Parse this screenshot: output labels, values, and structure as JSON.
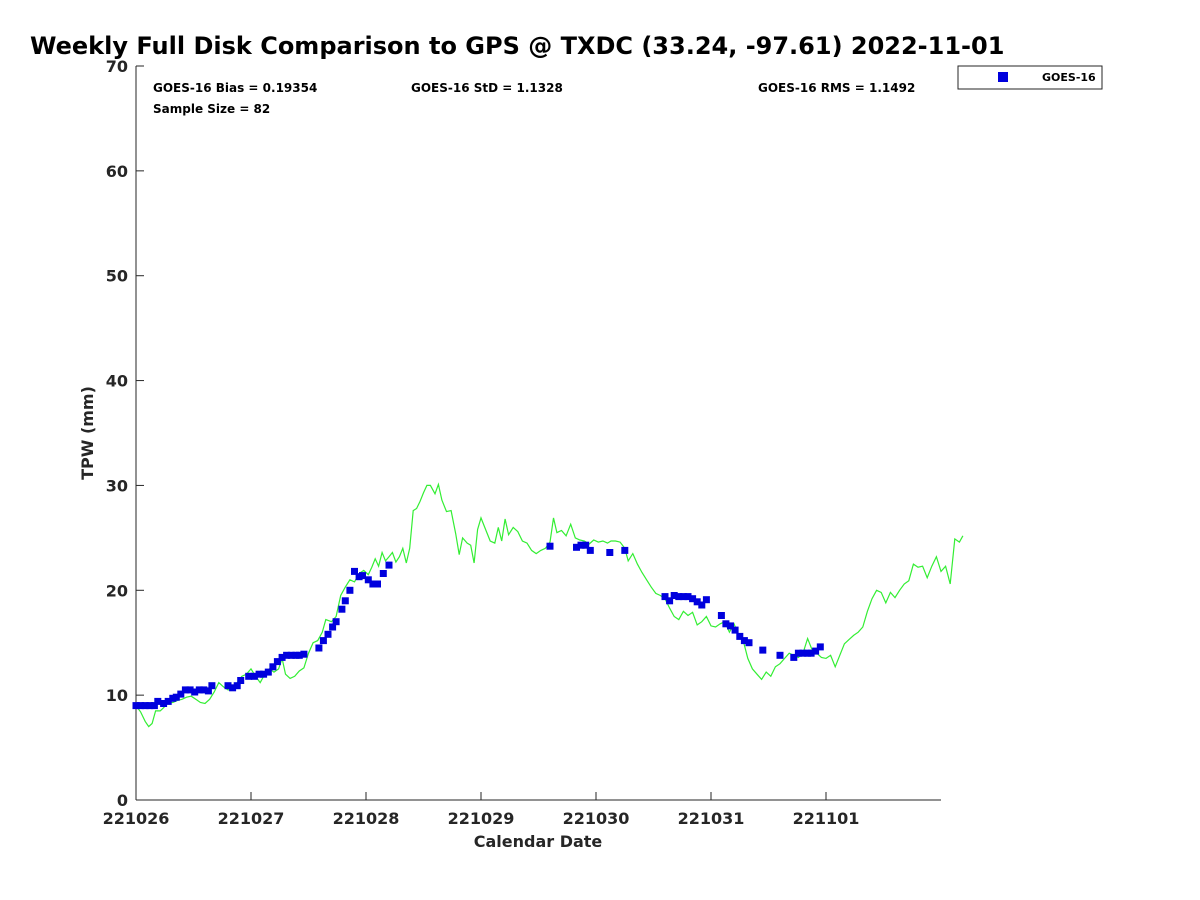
{
  "chart_data": {
    "type": "scatter",
    "title": "Weekly Full Disk Comparison to GPS @ TXDC (33.24, -97.61) 2022-11-01",
    "xlabel": "Calendar Date",
    "ylabel": "TPW (mm)",
    "xlim": [
      0,
      7
    ],
    "ylim": [
      0,
      70
    ],
    "yticks": [
      0,
      10,
      20,
      30,
      40,
      50,
      60,
      70
    ],
    "xticks": [
      {
        "pos": 0,
        "label": "221026"
      },
      {
        "pos": 1,
        "label": "221027"
      },
      {
        "pos": 2,
        "label": "221028"
      },
      {
        "pos": 3,
        "label": "221029"
      },
      {
        "pos": 4,
        "label": "221030"
      },
      {
        "pos": 5,
        "label": "221031"
      },
      {
        "pos": 6,
        "label": "221101"
      }
    ],
    "stats": {
      "bias": "GOES-16 Bias = 0.19354",
      "std": "GOES-16 StD = 1.1328",
      "rms": "GOES-16 RMS = 1.1492",
      "sample": "Sample Size = 82"
    },
    "legend": {
      "position": "outside-top-right",
      "entries": [
        "GOES-16"
      ]
    },
    "grid": false,
    "colors": {
      "goes": "#0000dd",
      "gps": "#33ee33"
    },
    "series": [
      {
        "name": "GOES-16",
        "kind": "markers",
        "points": [
          [
            0.0,
            9.0
          ],
          [
            0.04,
            9.0
          ],
          [
            0.08,
            9.0
          ],
          [
            0.12,
            9.0
          ],
          [
            0.16,
            9.0
          ],
          [
            0.19,
            9.4
          ],
          [
            0.24,
            9.2
          ],
          [
            0.28,
            9.4
          ],
          [
            0.32,
            9.7
          ],
          [
            0.35,
            9.8
          ],
          [
            0.39,
            10.1
          ],
          [
            0.43,
            10.5
          ],
          [
            0.47,
            10.5
          ],
          [
            0.51,
            10.3
          ],
          [
            0.55,
            10.5
          ],
          [
            0.59,
            10.5
          ],
          [
            0.63,
            10.4
          ],
          [
            0.66,
            10.9
          ],
          [
            0.8,
            10.9
          ],
          [
            0.84,
            10.7
          ],
          [
            0.88,
            10.9
          ],
          [
            0.91,
            11.4
          ],
          [
            0.98,
            11.8
          ],
          [
            1.03,
            11.8
          ],
          [
            1.07,
            12.0
          ],
          [
            1.11,
            12.0
          ],
          [
            1.15,
            12.2
          ],
          [
            1.19,
            12.7
          ],
          [
            1.23,
            13.2
          ],
          [
            1.27,
            13.6
          ],
          [
            1.31,
            13.8
          ],
          [
            1.35,
            13.8
          ],
          [
            1.39,
            13.8
          ],
          [
            1.42,
            13.8
          ],
          [
            1.46,
            13.9
          ],
          [
            1.59,
            14.5
          ],
          [
            1.63,
            15.2
          ],
          [
            1.67,
            15.8
          ],
          [
            1.71,
            16.5
          ],
          [
            1.74,
            17.0
          ],
          [
            1.79,
            18.2
          ],
          [
            1.82,
            19.0
          ],
          [
            1.86,
            20.0
          ],
          [
            1.9,
            21.8
          ],
          [
            1.94,
            21.3
          ],
          [
            1.97,
            21.4
          ],
          [
            2.02,
            21.0
          ],
          [
            2.06,
            20.6
          ],
          [
            2.1,
            20.6
          ],
          [
            2.15,
            21.6
          ],
          [
            2.2,
            22.4
          ],
          [
            3.6,
            24.2
          ],
          [
            3.83,
            24.1
          ],
          [
            3.87,
            24.3
          ],
          [
            3.91,
            24.3
          ],
          [
            3.95,
            23.8
          ],
          [
            4.12,
            23.6
          ],
          [
            4.25,
            23.8
          ],
          [
            4.6,
            19.4
          ],
          [
            4.64,
            19.0
          ],
          [
            4.68,
            19.5
          ],
          [
            4.72,
            19.4
          ],
          [
            4.76,
            19.4
          ],
          [
            4.8,
            19.4
          ],
          [
            4.84,
            19.2
          ],
          [
            4.88,
            18.9
          ],
          [
            4.92,
            18.6
          ],
          [
            4.96,
            19.1
          ],
          [
            5.09,
            17.6
          ],
          [
            5.13,
            16.8
          ],
          [
            5.17,
            16.6
          ],
          [
            5.21,
            16.2
          ],
          [
            5.25,
            15.6
          ],
          [
            5.29,
            15.2
          ],
          [
            5.33,
            15.0
          ],
          [
            5.45,
            14.3
          ],
          [
            5.6,
            13.8
          ],
          [
            5.72,
            13.6
          ],
          [
            5.76,
            14.0
          ],
          [
            5.8,
            14.0
          ],
          [
            5.84,
            14.0
          ],
          [
            5.87,
            14.0
          ],
          [
            5.91,
            14.2
          ],
          [
            5.95,
            14.6
          ]
        ]
      },
      {
        "name": "",
        "kind": "line",
        "points": [
          [
            0.0,
            9.0
          ],
          [
            0.04,
            8.4
          ],
          [
            0.08,
            7.5
          ],
          [
            0.11,
            7.0
          ],
          [
            0.14,
            7.3
          ],
          [
            0.17,
            8.5
          ],
          [
            0.21,
            8.5
          ],
          [
            0.24,
            8.8
          ],
          [
            0.28,
            9.3
          ],
          [
            0.32,
            9.3
          ],
          [
            0.36,
            9.5
          ],
          [
            0.4,
            9.6
          ],
          [
            0.44,
            9.8
          ],
          [
            0.48,
            9.9
          ],
          [
            0.52,
            9.6
          ],
          [
            0.56,
            9.3
          ],
          [
            0.6,
            9.2
          ],
          [
            0.64,
            9.6
          ],
          [
            0.68,
            10.3
          ],
          [
            0.72,
            11.2
          ],
          [
            0.76,
            10.8
          ],
          [
            0.8,
            10.5
          ],
          [
            0.84,
            10.5
          ],
          [
            0.88,
            11.2
          ],
          [
            0.92,
            11.8
          ],
          [
            0.96,
            12.0
          ],
          [
            1.0,
            12.5
          ],
          [
            1.04,
            11.8
          ],
          [
            1.08,
            11.2
          ],
          [
            1.12,
            12.0
          ],
          [
            1.16,
            12.5
          ],
          [
            1.2,
            12.2
          ],
          [
            1.24,
            12.5
          ],
          [
            1.27,
            13.5
          ],
          [
            1.3,
            12.0
          ],
          [
            1.34,
            11.6
          ],
          [
            1.38,
            11.8
          ],
          [
            1.42,
            12.3
          ],
          [
            1.46,
            12.6
          ],
          [
            1.5,
            14.0
          ],
          [
            1.54,
            15.0
          ],
          [
            1.58,
            15.2
          ],
          [
            1.62,
            16.0
          ],
          [
            1.65,
            17.2
          ],
          [
            1.7,
            17.0
          ],
          [
            1.74,
            17.5
          ],
          [
            1.78,
            19.5
          ],
          [
            1.82,
            20.3
          ],
          [
            1.86,
            21.0
          ],
          [
            1.9,
            20.8
          ],
          [
            1.94,
            21.6
          ],
          [
            1.98,
            21.9
          ],
          [
            2.02,
            21.5
          ],
          [
            2.05,
            22.2
          ],
          [
            2.08,
            23.0
          ],
          [
            2.11,
            22.3
          ],
          [
            2.14,
            23.6
          ],
          [
            2.17,
            22.8
          ],
          [
            2.2,
            23.2
          ],
          [
            2.23,
            23.6
          ],
          [
            2.26,
            22.7
          ],
          [
            2.29,
            23.2
          ],
          [
            2.32,
            24.0
          ],
          [
            2.35,
            22.6
          ],
          [
            2.38,
            24.0
          ],
          [
            2.41,
            27.6
          ],
          [
            2.44,
            27.8
          ],
          [
            2.47,
            28.5
          ],
          [
            2.5,
            29.3
          ],
          [
            2.53,
            30.0
          ],
          [
            2.56,
            30.0
          ],
          [
            2.6,
            29.2
          ],
          [
            2.63,
            30.1
          ],
          [
            2.66,
            28.6
          ],
          [
            2.7,
            27.5
          ],
          [
            2.74,
            27.6
          ],
          [
            2.78,
            25.4
          ],
          [
            2.81,
            23.4
          ],
          [
            2.84,
            25.0
          ],
          [
            2.88,
            24.5
          ],
          [
            2.91,
            24.3
          ],
          [
            2.94,
            22.6
          ],
          [
            2.97,
            25.8
          ],
          [
            3.0,
            26.9
          ],
          [
            3.04,
            25.8
          ],
          [
            3.08,
            24.7
          ],
          [
            3.12,
            24.5
          ],
          [
            3.15,
            26.0
          ],
          [
            3.18,
            24.7
          ],
          [
            3.21,
            26.8
          ],
          [
            3.24,
            25.3
          ],
          [
            3.28,
            26.0
          ],
          [
            3.32,
            25.6
          ],
          [
            3.36,
            24.7
          ],
          [
            3.4,
            24.5
          ],
          [
            3.44,
            23.8
          ],
          [
            3.48,
            23.5
          ],
          [
            3.52,
            23.8
          ],
          [
            3.56,
            24.0
          ],
          [
            3.6,
            24.6
          ],
          [
            3.63,
            26.9
          ],
          [
            3.66,
            25.5
          ],
          [
            3.7,
            25.7
          ],
          [
            3.74,
            25.2
          ],
          [
            3.78,
            26.3
          ],
          [
            3.82,
            25.0
          ],
          [
            3.86,
            24.8
          ],
          [
            3.9,
            24.7
          ],
          [
            3.94,
            24.4
          ],
          [
            3.98,
            24.8
          ],
          [
            4.02,
            24.6
          ],
          [
            4.06,
            24.7
          ],
          [
            4.1,
            24.5
          ],
          [
            4.13,
            24.7
          ],
          [
            4.17,
            24.7
          ],
          [
            4.21,
            24.6
          ],
          [
            4.25,
            24.0
          ],
          [
            4.28,
            22.8
          ],
          [
            4.32,
            23.5
          ],
          [
            4.36,
            22.5
          ],
          [
            4.4,
            21.7
          ],
          [
            4.44,
            21.0
          ],
          [
            4.48,
            20.3
          ],
          [
            4.52,
            19.7
          ],
          [
            4.56,
            19.5
          ],
          [
            4.6,
            19.2
          ],
          [
            4.64,
            18.3
          ],
          [
            4.68,
            17.5
          ],
          [
            4.72,
            17.2
          ],
          [
            4.76,
            18.0
          ],
          [
            4.8,
            17.6
          ],
          [
            4.84,
            17.9
          ],
          [
            4.88,
            16.7
          ],
          [
            4.92,
            17.0
          ],
          [
            4.96,
            17.5
          ],
          [
            5.0,
            16.6
          ],
          [
            5.04,
            16.5
          ],
          [
            5.08,
            16.8
          ],
          [
            5.12,
            17.0
          ],
          [
            5.16,
            16.0
          ],
          [
            5.2,
            16.8
          ],
          [
            5.24,
            15.7
          ],
          [
            5.28,
            15.2
          ],
          [
            5.32,
            13.5
          ],
          [
            5.36,
            12.5
          ],
          [
            5.4,
            12.0
          ],
          [
            5.44,
            11.5
          ],
          [
            5.48,
            12.2
          ],
          [
            5.52,
            11.8
          ],
          [
            5.56,
            12.7
          ],
          [
            5.6,
            13.0
          ],
          [
            5.64,
            13.5
          ],
          [
            5.68,
            14.0
          ],
          [
            5.72,
            13.8
          ],
          [
            5.76,
            13.6
          ],
          [
            5.8,
            14.0
          ],
          [
            5.84,
            15.4
          ],
          [
            5.88,
            14.3
          ],
          [
            5.92,
            14.0
          ],
          [
            5.96,
            13.6
          ],
          [
            6.0,
            13.5
          ],
          [
            6.04,
            13.8
          ],
          [
            6.08,
            12.7
          ],
          [
            6.12,
            13.8
          ],
          [
            6.16,
            14.9
          ],
          [
            6.2,
            15.3
          ],
          [
            6.24,
            15.7
          ],
          [
            6.28,
            16.0
          ],
          [
            6.32,
            16.5
          ],
          [
            6.36,
            18.0
          ],
          [
            6.4,
            19.2
          ],
          [
            6.44,
            20.0
          ],
          [
            6.48,
            19.8
          ],
          [
            6.52,
            18.8
          ],
          [
            6.56,
            19.8
          ],
          [
            6.6,
            19.3
          ],
          [
            6.64,
            20.0
          ],
          [
            6.68,
            20.6
          ],
          [
            6.72,
            20.9
          ],
          [
            6.76,
            22.5
          ],
          [
            6.8,
            22.2
          ],
          [
            6.84,
            22.3
          ],
          [
            6.88,
            21.2
          ],
          [
            6.92,
            22.3
          ],
          [
            6.96,
            23.2
          ],
          [
            7.0,
            21.8
          ],
          [
            7.04,
            22.3
          ],
          [
            7.08,
            20.6
          ],
          [
            7.12,
            24.9
          ],
          [
            7.16,
            24.6
          ],
          [
            7.19,
            25.2
          ]
        ]
      }
    ]
  }
}
